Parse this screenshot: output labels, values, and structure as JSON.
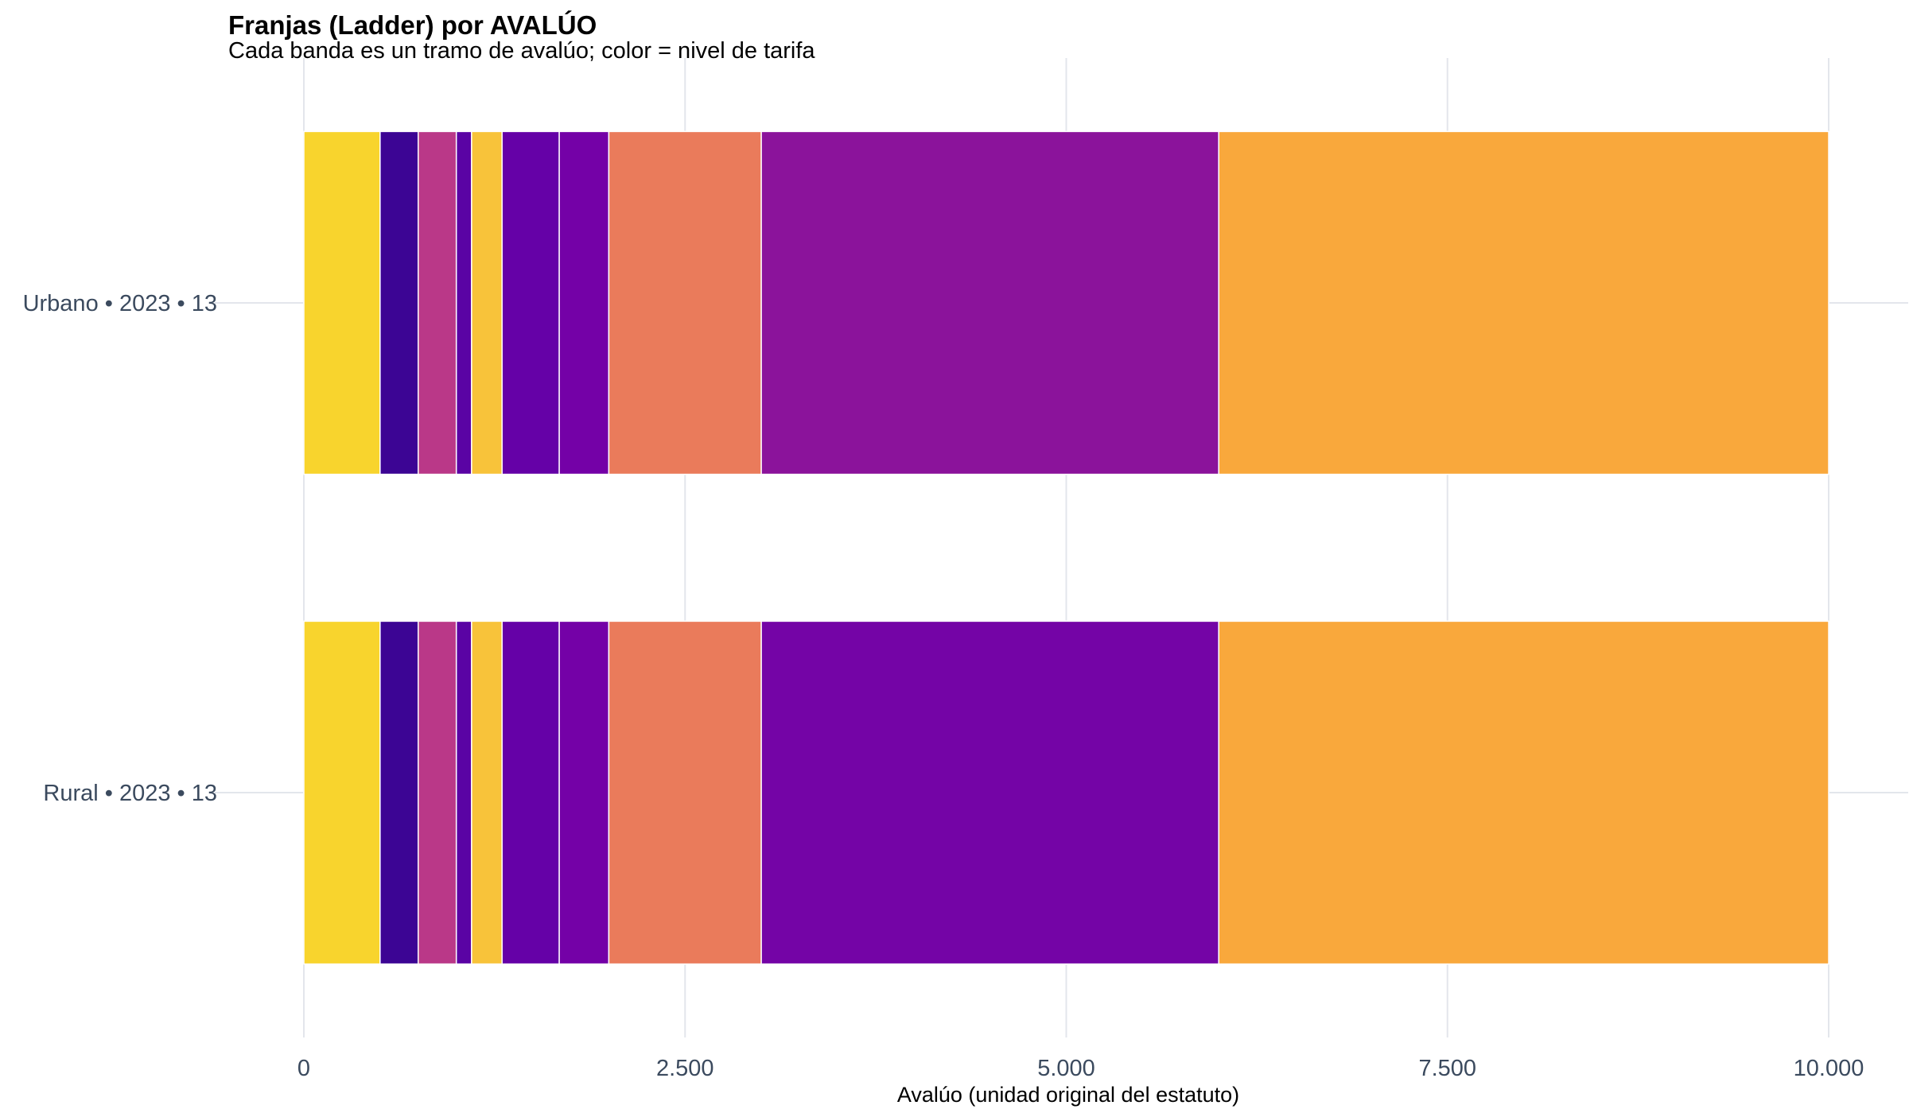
{
  "chart_data": {
    "type": "bar",
    "orientation": "horizontal",
    "stacked": true,
    "title": "Franjas (Ladder) por AVALÚO",
    "subtitle": "Cada banda es un tramo de avalúo; color = nivel de tarifa",
    "xlabel": "Avalúo (unidad original del estatuto)",
    "ylabel": "",
    "xlim": [
      0,
      10000
    ],
    "x_ticks": [
      {
        "value": 0,
        "label": "0"
      },
      {
        "value": 2500,
        "label": "2.500"
      },
      {
        "value": 5000,
        "label": "5.000"
      },
      {
        "value": 7500,
        "label": "7.500"
      },
      {
        "value": 10000,
        "label": "10.000"
      }
    ],
    "grid": true,
    "legend": "none",
    "categories": [
      {
        "label": "Urbano • 2023 • 13",
        "bands": [
          {
            "start": 0,
            "end": 500,
            "color": "#f8d42d"
          },
          {
            "start": 500,
            "end": 750,
            "color": "#3c0594"
          },
          {
            "start": 750,
            "end": 1000,
            "color": "#ba3888"
          },
          {
            "start": 1000,
            "end": 1100,
            "color": "#5a03a4"
          },
          {
            "start": 1100,
            "end": 1300,
            "color": "#f8c33a"
          },
          {
            "start": 1300,
            "end": 1675,
            "color": "#6501a7"
          },
          {
            "start": 1675,
            "end": 2000,
            "color": "#7401a7"
          },
          {
            "start": 2000,
            "end": 3000,
            "color": "#ea7b5b"
          },
          {
            "start": 3000,
            "end": 6000,
            "color": "#8b139b"
          },
          {
            "start": 6000,
            "end": 10000,
            "color": "#f9a83c"
          }
        ]
      },
      {
        "label": "Rural • 2023 • 13",
        "bands": [
          {
            "start": 0,
            "end": 500,
            "color": "#f8d42d"
          },
          {
            "start": 500,
            "end": 750,
            "color": "#3c0594"
          },
          {
            "start": 750,
            "end": 1000,
            "color": "#ba3888"
          },
          {
            "start": 1000,
            "end": 1100,
            "color": "#5a03a4"
          },
          {
            "start": 1100,
            "end": 1300,
            "color": "#f8c33a"
          },
          {
            "start": 1300,
            "end": 1675,
            "color": "#6501a7"
          },
          {
            "start": 1675,
            "end": 2000,
            "color": "#7401a7"
          },
          {
            "start": 2000,
            "end": 3000,
            "color": "#ea7b5b"
          },
          {
            "start": 3000,
            "end": 6000,
            "color": "#7404a6"
          },
          {
            "start": 6000,
            "end": 10000,
            "color": "#f9a83c"
          }
        ]
      }
    ]
  }
}
